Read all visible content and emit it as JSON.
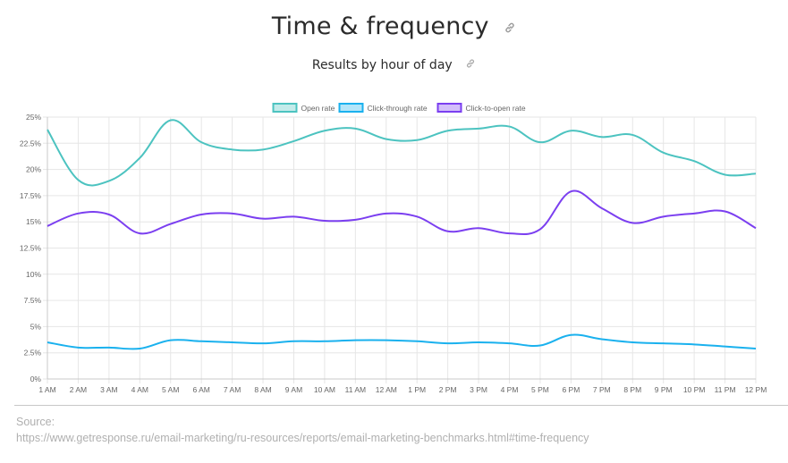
{
  "header": {
    "title": "Time & frequency",
    "subtitle": "Results by hour of day",
    "link_icon": "link-icon"
  },
  "footer": {
    "source_label": "Source:",
    "source_url": "https://www.getresponse.ru/email-marketing/ru-resources/reports/email-marketing-benchmarks.html#time-frequency"
  },
  "colors": {
    "open_rate": "#4cc3c0",
    "click_through_rate": "#1ab1ee",
    "click_to_open_rate": "#7b3ff0",
    "grid": "#e6e6e6"
  },
  "chart_data": {
    "type": "line",
    "categories": [
      "1 AM",
      "2 AM",
      "3 AM",
      "4 AM",
      "5 AM",
      "6 AM",
      "7 AM",
      "8 AM",
      "9 AM",
      "10 AM",
      "11 AM",
      "12 AM",
      "1 PM",
      "2 PM",
      "3 PM",
      "4 PM",
      "5 PM",
      "6 PM",
      "7 PM",
      "8 PM",
      "9 PM",
      "10 PM",
      "11 PM",
      "12 PM"
    ],
    "ylim": [
      0,
      25
    ],
    "yticks": [
      "0%",
      "2.5%",
      "5%",
      "7.5%",
      "10%",
      "12.5%",
      "15%",
      "17.5%",
      "20%",
      "22.5%",
      "25%"
    ],
    "grid": true,
    "legend_position": "top-center",
    "series": [
      {
        "name": "Open rate",
        "color": "#4cc3c0",
        "values": [
          23.8,
          19.0,
          18.9,
          21.1,
          24.7,
          22.6,
          21.9,
          21.9,
          22.7,
          23.7,
          23.9,
          22.9,
          22.8,
          23.7,
          23.9,
          24.1,
          22.6,
          23.7,
          23.1,
          23.3,
          21.6,
          20.8,
          19.5,
          19.6
        ]
      },
      {
        "name": "Click-through rate",
        "color": "#1ab1ee",
        "values": [
          3.5,
          3.0,
          3.0,
          2.9,
          3.7,
          3.6,
          3.5,
          3.4,
          3.6,
          3.6,
          3.7,
          3.7,
          3.6,
          3.4,
          3.5,
          3.4,
          3.2,
          4.2,
          3.8,
          3.5,
          3.4,
          3.3,
          3.1,
          2.9
        ]
      },
      {
        "name": "Click-to-open rate",
        "color": "#7b3ff0",
        "values": [
          14.6,
          15.8,
          15.7,
          13.9,
          14.8,
          15.7,
          15.8,
          15.3,
          15.5,
          15.1,
          15.2,
          15.8,
          15.5,
          14.1,
          14.4,
          13.9,
          14.3,
          17.9,
          16.3,
          14.9,
          15.5,
          15.8,
          16.0,
          14.4
        ]
      }
    ]
  }
}
